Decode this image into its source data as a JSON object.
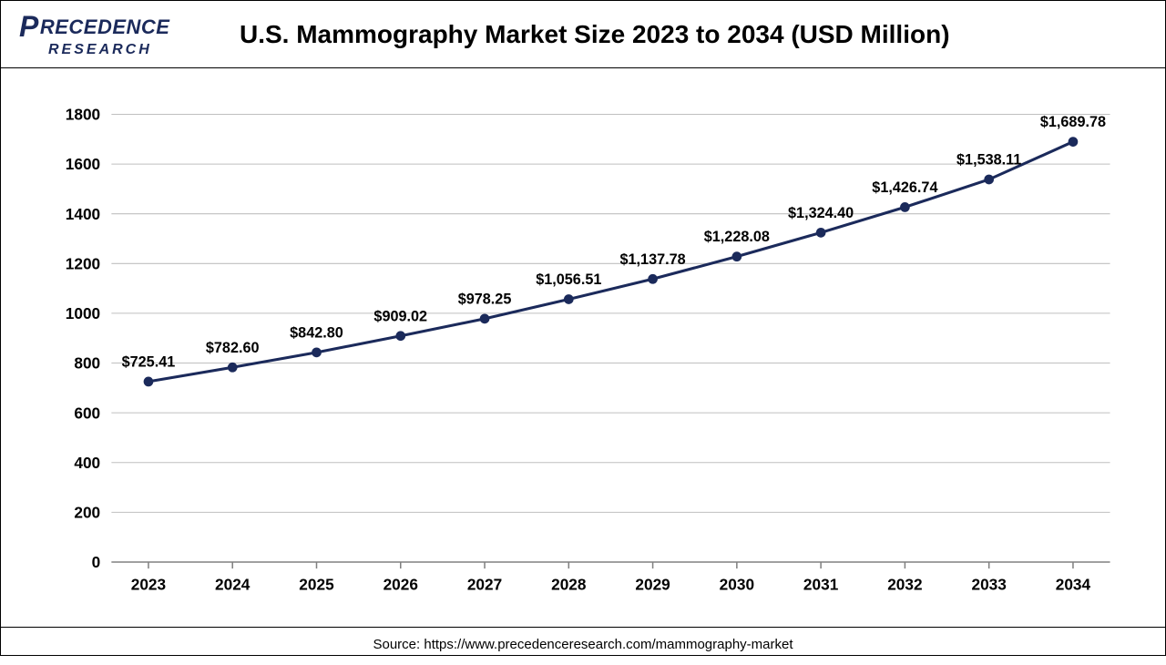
{
  "header": {
    "logo_top": "RECEDENCE",
    "logo_big_p": "P",
    "logo_bottom": "RESEARCH",
    "title": "U.S. Mammography Market Size 2023 to 2034 (USD Million)"
  },
  "chart": {
    "type": "line",
    "background_color": "#ffffff",
    "grid_color": "#bfbfbf",
    "axis_color": "#808080",
    "line_color": "#1b2a5b",
    "marker_fill": "#1b2a5b",
    "marker_stroke": "#1b2a5b",
    "marker_radius": 4.5,
    "line_width": 3,
    "xlim": [
      2023,
      2034
    ],
    "ylim": [
      0,
      1800
    ],
    "ytick_step": 200,
    "yticks": [
      0,
      200,
      400,
      600,
      800,
      1000,
      1200,
      1400,
      1600,
      1800
    ],
    "categories": [
      "2023",
      "2024",
      "2025",
      "2026",
      "2027",
      "2028",
      "2029",
      "2030",
      "2031",
      "2032",
      "2033",
      "2034"
    ],
    "values": [
      725.41,
      782.6,
      842.8,
      909.02,
      978.25,
      1056.51,
      1137.78,
      1228.08,
      1324.4,
      1426.74,
      1538.11,
      1689.78
    ],
    "value_labels": [
      "$725.41",
      "$782.60",
      "$842.80",
      "$909.02",
      "$978.25",
      "$1,056.51",
      "$1,137.78",
      "$1,228.08",
      "$1,324.40",
      "$1,426.74",
      "$1,538.11",
      "$1,689.78"
    ],
    "label_fontsize": 16,
    "tick_fontsize": 17,
    "tick_fontweight": "bold"
  },
  "footer": {
    "source_text": "Source: https://www.precedenceresearch.com/mammography-market"
  }
}
